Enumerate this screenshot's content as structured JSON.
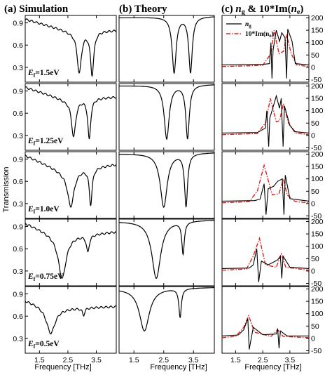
{
  "panel_titles": {
    "a": "(a)  Simulation",
    "b": "(b)    Theory",
    "c_pre": "(c) ",
    "c_ng": "n",
    "c_ng_sub": "g",
    "c_mid": " & 10*Im(",
    "c_ne": "n",
    "c_ne_sub": "e",
    "c_post": ")"
  },
  "ylabel": "Transmission",
  "xlabel": "Frequency [THz]",
  "ef_labels": [
    {
      "pre": "E",
      "sub": "f",
      "post": "=1.5eV"
    },
    {
      "pre": "E",
      "sub": "f",
      "post": "=1.25eV"
    },
    {
      "pre": "E",
      "sub": "f",
      "post": "=1.0eV"
    },
    {
      "pre": "E",
      "sub": "f",
      "post": "=0.75eV"
    },
    {
      "pre": "E",
      "sub": "f",
      "post": "=0.5eV"
    }
  ],
  "x_ticks": [
    "1.5",
    "2.5",
    "3.5"
  ],
  "left_y_ticks": [
    "0.9",
    "0.6",
    "0.3"
  ],
  "right_y_ticks": [
    "200",
    "150",
    "100",
    "50",
    "0",
    "-50"
  ],
  "legend": {
    "ng": {
      "pre": "n",
      "sub": "g"
    },
    "ne": {
      "pre": "10*Im(n",
      "sub": "e",
      "post": ")"
    }
  },
  "colors": {
    "ng": "#000000",
    "ne": "#e0201e"
  },
  "chart_data": [
    {
      "type": "line",
      "xlim": [
        1.0,
        4.2
      ],
      "ylim": [
        0.1,
        1.0
      ],
      "xlabel": "Frequency [THz]",
      "ylabel": "Transmission",
      "rows": [
        {
          "label": "E_f=1.5eV",
          "base": [
            [
              1.0,
              0.95
            ],
            [
              2.6,
              0.78
            ],
            [
              4.2,
              0.8
            ]
          ],
          "dips": [
            [
              2.9,
              0.22,
              0.09
            ],
            [
              3.35,
              0.19,
              0.07
            ]
          ]
        },
        {
          "label": "E_f=1.25eV",
          "base": [
            [
              1.0,
              0.95
            ],
            [
              2.4,
              0.78
            ],
            [
              4.2,
              0.82
            ]
          ],
          "dips": [
            [
              2.7,
              0.28,
              0.09
            ],
            [
              3.25,
              0.24,
              0.06
            ]
          ]
        },
        {
          "label": "E_f=1.0eV",
          "base": [
            [
              1.0,
              0.95
            ],
            [
              2.3,
              0.74
            ],
            [
              4.2,
              0.83
            ]
          ],
          "dips": [
            [
              2.6,
              0.26,
              0.14
            ],
            [
              3.3,
              0.28,
              0.06
            ]
          ]
        },
        {
          "label": "E_f=0.75eV",
          "base": [
            [
              1.0,
              0.95
            ],
            [
              2.2,
              0.76
            ],
            [
              4.2,
              0.83
            ]
          ],
          "dips": [
            [
              2.3,
              0.2,
              0.16
            ],
            [
              3.2,
              0.55,
              0.06
            ]
          ]
        },
        {
          "label": "E_f=0.5eV",
          "base": [
            [
              1.0,
              0.82
            ],
            [
              2.0,
              0.7
            ],
            [
              4.2,
              0.73
            ]
          ],
          "dips": [
            [
              1.9,
              0.37,
              0.18
            ],
            [
              3.05,
              0.61,
              0.05
            ]
          ]
        }
      ]
    },
    {
      "type": "line",
      "xlim": [
        1.0,
        4.2
      ],
      "ylim": [
        0.1,
        1.0
      ],
      "xlabel": "Frequency [THz]",
      "rows": [
        {
          "base": [
            [
              1.0,
              0.97
            ],
            [
              4.2,
              0.99
            ]
          ],
          "dips": [
            [
              2.85,
              0.22,
              0.08
            ],
            [
              3.4,
              0.22,
              0.07
            ]
          ]
        },
        {
          "base": [
            [
              1.0,
              0.97
            ],
            [
              4.2,
              0.99
            ]
          ],
          "dips": [
            [
              2.6,
              0.25,
              0.1
            ],
            [
              3.3,
              0.25,
              0.07
            ]
          ]
        },
        {
          "base": [
            [
              1.0,
              0.97
            ],
            [
              4.2,
              0.99
            ]
          ],
          "dips": [
            [
              2.5,
              0.25,
              0.14
            ],
            [
              3.25,
              0.25,
              0.06
            ]
          ]
        },
        {
          "base": [
            [
              1.0,
              0.97
            ],
            [
              4.2,
              0.99
            ]
          ],
          "dips": [
            [
              2.25,
              0.2,
              0.18
            ],
            [
              3.15,
              0.52,
              0.05
            ]
          ]
        },
        {
          "base": [
            [
              1.0,
              0.97
            ],
            [
              4.2,
              0.99
            ]
          ],
          "dips": [
            [
              1.85,
              0.4,
              0.2
            ],
            [
              3.05,
              0.58,
              0.05
            ]
          ]
        }
      ]
    },
    {
      "type": "line",
      "xlim": [
        1.0,
        4.2
      ],
      "ylim": [
        -60,
        210
      ],
      "series": [
        {
          "name": "n_g",
          "color": "#000000"
        },
        {
          "name": "10*Im(n_e)",
          "color": "#e0201e"
        }
      ],
      "rows": [
        {
          "ng": [
            [
              1.0,
              10
            ],
            [
              2.5,
              12
            ],
            [
              2.75,
              15
            ],
            [
              2.8,
              100
            ],
            [
              2.84,
              -45
            ],
            [
              2.88,
              70
            ],
            [
              3.0,
              150
            ],
            [
              3.12,
              105
            ],
            [
              3.2,
              140
            ],
            [
              3.32,
              120
            ],
            [
              3.38,
              -45
            ],
            [
              3.42,
              155
            ],
            [
              3.58,
              105
            ],
            [
              3.7,
              15
            ],
            [
              4.2,
              10
            ]
          ],
          "ne": [
            [
              1.0,
              3
            ],
            [
              2.5,
              8
            ],
            [
              2.8,
              55
            ],
            [
              2.92,
              150
            ],
            [
              3.1,
              55
            ],
            [
              3.27,
              65
            ],
            [
              3.38,
              132
            ],
            [
              3.55,
              55
            ],
            [
              3.75,
              10
            ],
            [
              4.2,
              3
            ]
          ]
        },
        {
          "ng": [
            [
              1.0,
              10
            ],
            [
              2.3,
              12
            ],
            [
              2.6,
              30
            ],
            [
              2.65,
              100
            ],
            [
              2.72,
              -45
            ],
            [
              2.76,
              70
            ],
            [
              2.88,
              115
            ],
            [
              3.0,
              160
            ],
            [
              3.12,
              110
            ],
            [
              3.18,
              150
            ],
            [
              3.25,
              -45
            ],
            [
              3.3,
              120
            ],
            [
              3.5,
              40
            ],
            [
              3.7,
              15
            ],
            [
              4.2,
              10
            ]
          ],
          "ne": [
            [
              1.0,
              3
            ],
            [
              2.3,
              8
            ],
            [
              2.6,
              50
            ],
            [
              2.78,
              150
            ],
            [
              3.0,
              55
            ],
            [
              3.12,
              60
            ],
            [
              3.26,
              128
            ],
            [
              3.45,
              50
            ],
            [
              3.7,
              10
            ],
            [
              4.2,
              3
            ]
          ]
        },
        {
          "ng": [
            [
              1.0,
              10
            ],
            [
              2.2,
              12
            ],
            [
              2.4,
              18
            ],
            [
              2.55,
              80
            ],
            [
              2.62,
              -45
            ],
            [
              2.7,
              60
            ],
            [
              2.9,
              70
            ],
            [
              3.05,
              90
            ],
            [
              3.22,
              100
            ],
            [
              3.28,
              -45
            ],
            [
              3.33,
              115
            ],
            [
              3.5,
              20
            ],
            [
              4.2,
              10
            ]
          ],
          "ne": [
            [
              1.0,
              3
            ],
            [
              2.0,
              8
            ],
            [
              2.3,
              50
            ],
            [
              2.55,
              155
            ],
            [
              2.85,
              35
            ],
            [
              3.1,
              40
            ],
            [
              3.26,
              100
            ],
            [
              3.4,
              35
            ],
            [
              3.7,
              8
            ],
            [
              4.2,
              3
            ]
          ]
        },
        {
          "ng": [
            [
              1.0,
              10
            ],
            [
              2.0,
              12
            ],
            [
              2.15,
              25
            ],
            [
              2.28,
              90
            ],
            [
              2.35,
              -45
            ],
            [
              2.45,
              40
            ],
            [
              2.7,
              25
            ],
            [
              3.05,
              45
            ],
            [
              3.15,
              60
            ],
            [
              3.2,
              -30
            ],
            [
              3.25,
              60
            ],
            [
              3.5,
              15
            ],
            [
              4.2,
              10
            ]
          ],
          "ne": [
            [
              1.0,
              3
            ],
            [
              1.9,
              8
            ],
            [
              2.15,
              60
            ],
            [
              2.38,
              132
            ],
            [
              2.6,
              25
            ],
            [
              3.0,
              15
            ],
            [
              3.18,
              70
            ],
            [
              3.35,
              15
            ],
            [
              4.2,
              3
            ]
          ]
        },
        {
          "ng": [
            [
              1.0,
              10
            ],
            [
              1.6,
              14
            ],
            [
              1.8,
              35
            ],
            [
              1.95,
              80
            ],
            [
              2.0,
              -45
            ],
            [
              2.15,
              45
            ],
            [
              2.5,
              15
            ],
            [
              3.0,
              18
            ],
            [
              3.05,
              40
            ],
            [
              3.1,
              -40
            ],
            [
              3.15,
              30
            ],
            [
              3.4,
              10
            ],
            [
              4.2,
              10
            ]
          ],
          "ne": [
            [
              1.0,
              3
            ],
            [
              1.5,
              8
            ],
            [
              1.8,
              45
            ],
            [
              1.98,
              92
            ],
            [
              2.2,
              25
            ],
            [
              2.8,
              8
            ],
            [
              3.05,
              35
            ],
            [
              3.25,
              8
            ],
            [
              4.2,
              3
            ]
          ]
        }
      ]
    }
  ]
}
